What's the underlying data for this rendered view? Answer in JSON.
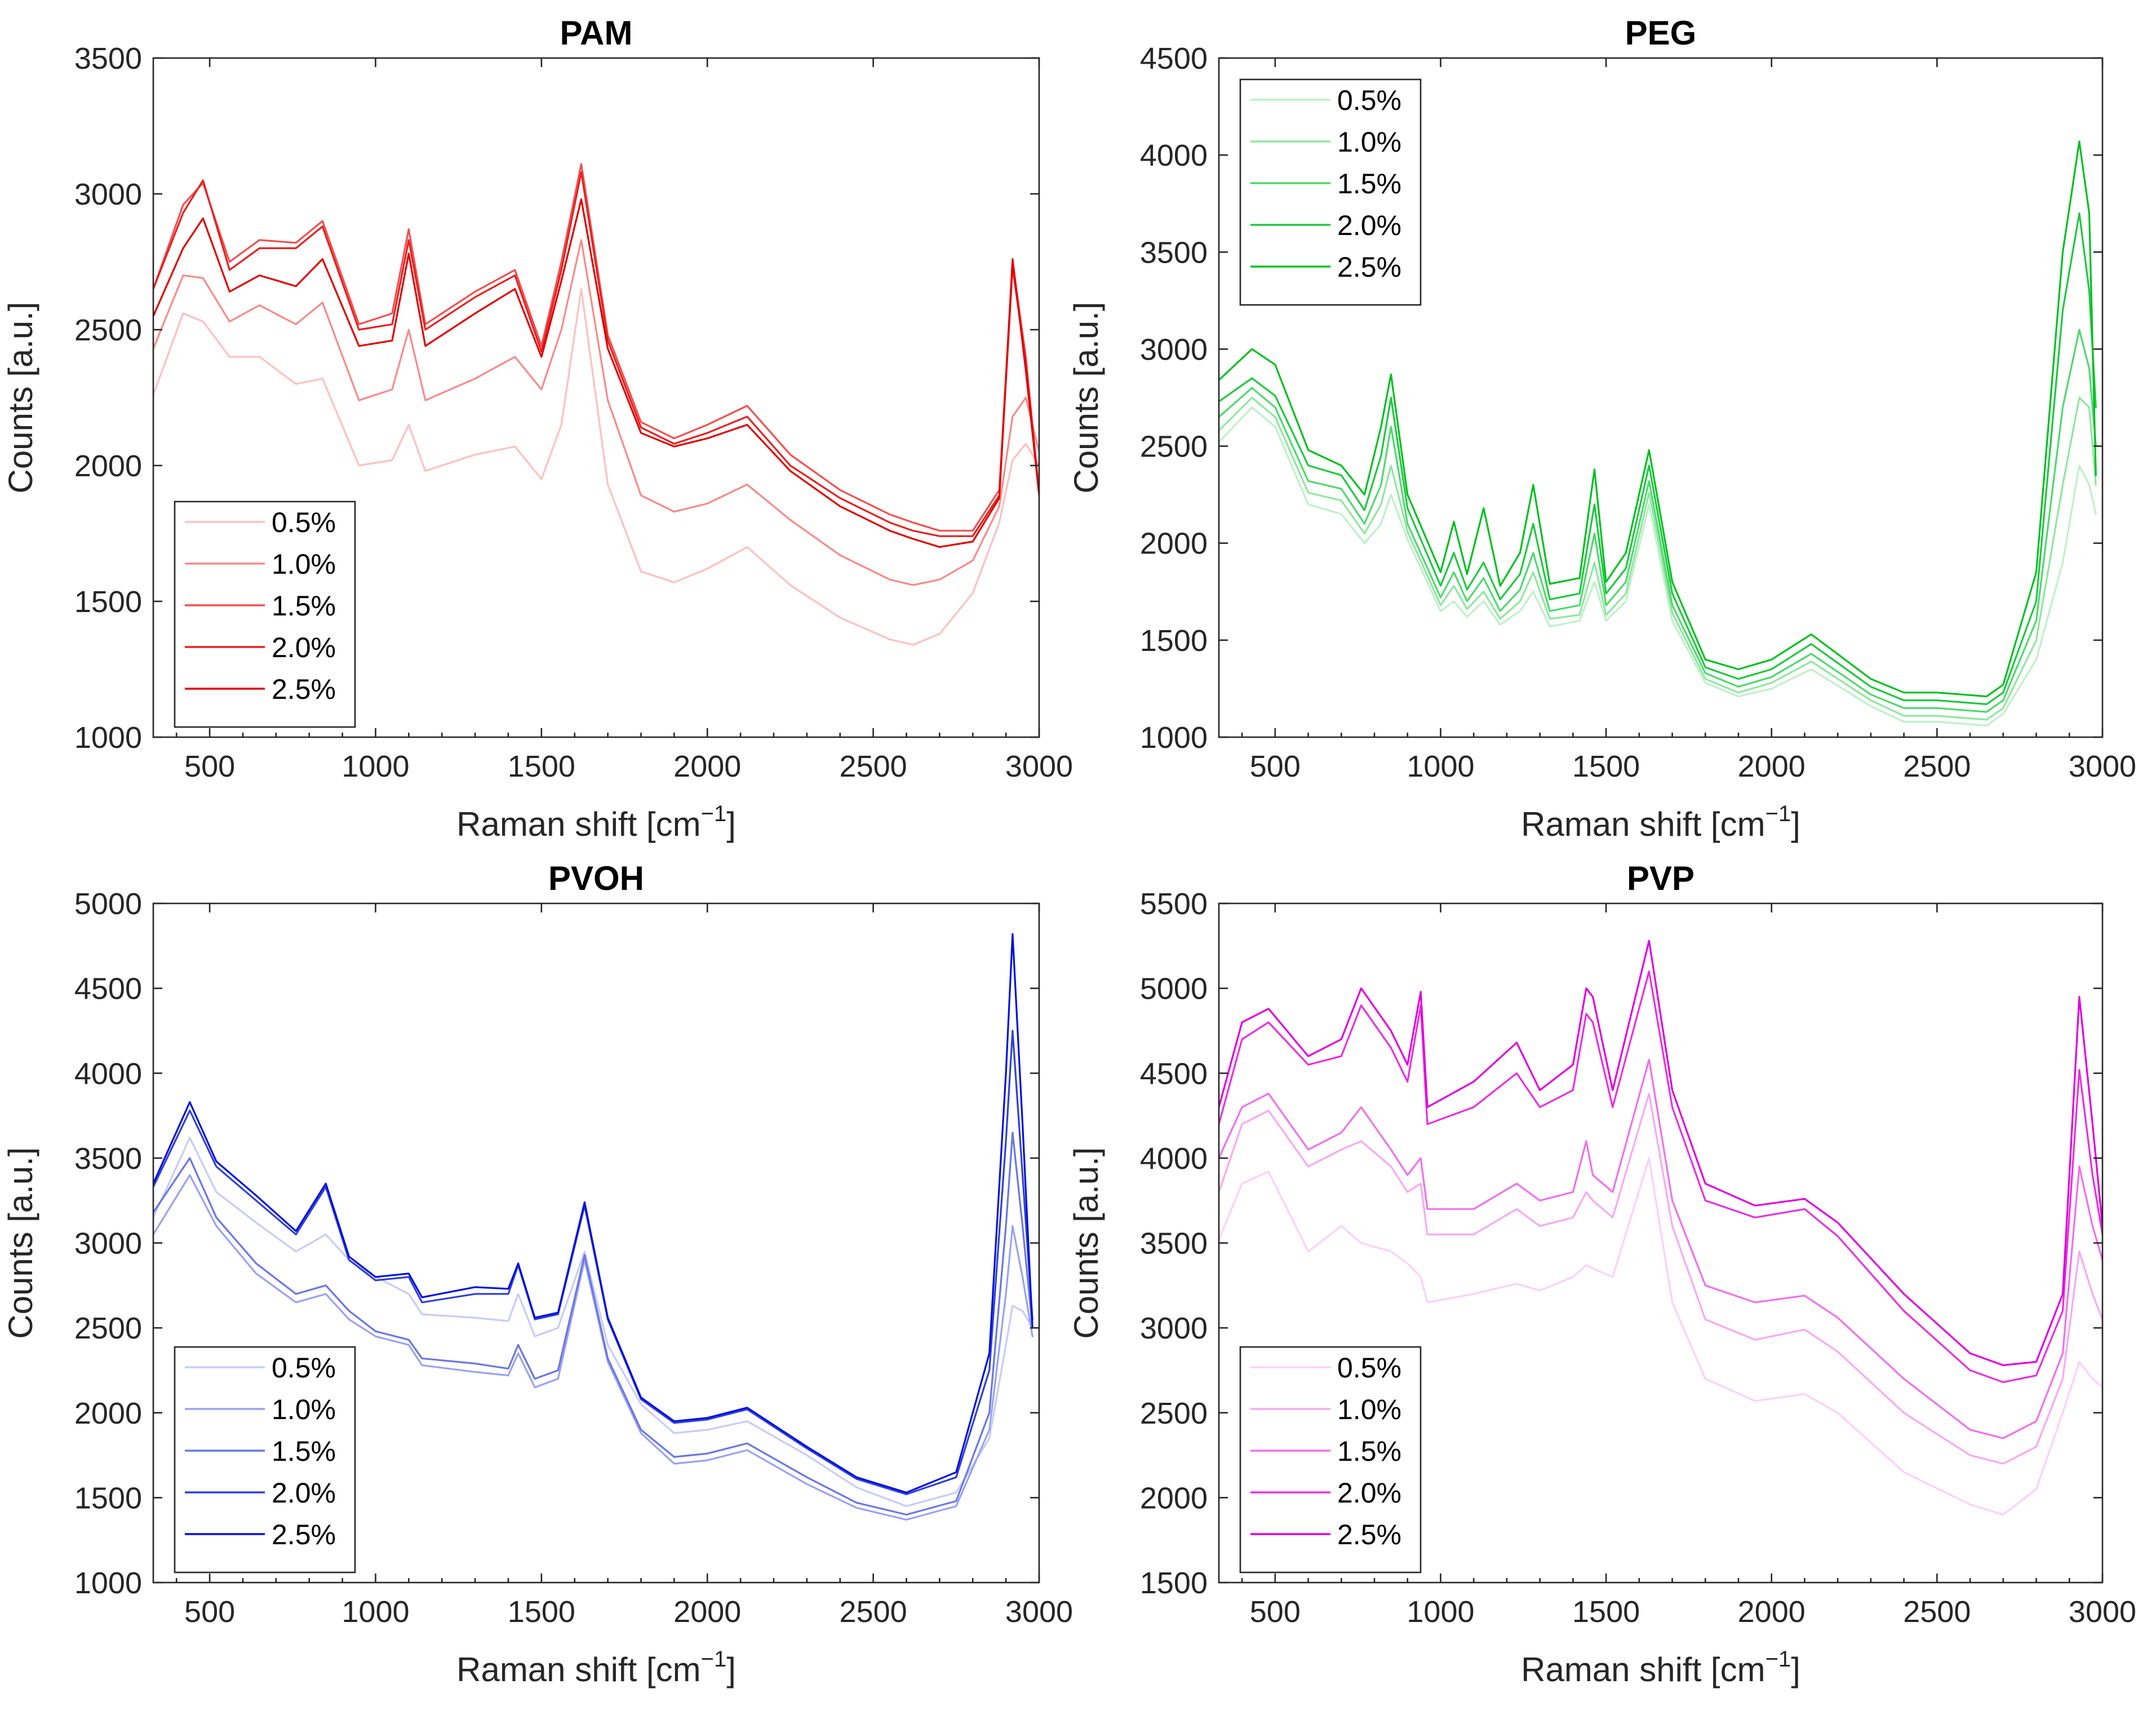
{
  "chart_data": [
    {
      "type": "line",
      "title": "PAM",
      "xlabel": "Raman shift [cm",
      "xlabel_exponent": "−1",
      "xlabel_close": "]",
      "ylabel": "Counts [a.u.]",
      "xlim": [
        330,
        3000
      ],
      "ylim": [
        1000,
        3500
      ],
      "xticks": [
        500,
        1000,
        1500,
        2000,
        2500,
        3000
      ],
      "xtick_labels": [
        "500",
        "1000",
        "1500",
        "2000",
        "2500",
        "3000"
      ],
      "yticks": [
        1000,
        1500,
        2000,
        2500,
        3000,
        3500
      ],
      "ytick_labels": [
        "1000",
        "1500",
        "2000",
        "2500",
        "3000",
        "3500"
      ],
      "legend_position": "bottom-left",
      "x": [
        330,
        420,
        480,
        560,
        650,
        760,
        840,
        950,
        1050,
        1100,
        1150,
        1300,
        1420,
        1500,
        1560,
        1620,
        1700,
        1800,
        1900,
        2000,
        2120,
        2250,
        2400,
        2550,
        2620,
        2700,
        2800,
        2880,
        2920,
        2960,
        3000
      ],
      "series": [
        {
          "name": "0.5%",
          "color": "#ffc0c0",
          "values": [
            2260,
            2560,
            2530,
            2400,
            2400,
            2300,
            2320,
            2000,
            2020,
            2150,
            1980,
            2040,
            2070,
            1950,
            2150,
            2650,
            1930,
            1610,
            1570,
            1620,
            1700,
            1560,
            1440,
            1360,
            1340,
            1380,
            1530,
            1790,
            2020,
            2080,
            2000
          ]
        },
        {
          "name": "1.0%",
          "color": "#f88a8a",
          "values": [
            2430,
            2700,
            2690,
            2530,
            2590,
            2520,
            2600,
            2240,
            2280,
            2500,
            2240,
            2320,
            2400,
            2280,
            2500,
            2830,
            2240,
            1890,
            1830,
            1860,
            1930,
            1800,
            1670,
            1580,
            1560,
            1580,
            1650,
            1850,
            2180,
            2250,
            2050
          ]
        },
        {
          "name": "1.5%",
          "color": "#f25050",
          "values": [
            2650,
            2960,
            3040,
            2750,
            2830,
            2820,
            2900,
            2520,
            2560,
            2870,
            2520,
            2640,
            2720,
            2440,
            2750,
            3110,
            2480,
            2160,
            2100,
            2150,
            2220,
            2040,
            1910,
            1820,
            1790,
            1760,
            1760,
            1910,
            2750,
            2400,
            1900
          ]
        },
        {
          "name": "2.0%",
          "color": "#e82020",
          "values": [
            2650,
            2930,
            3050,
            2720,
            2800,
            2800,
            2880,
            2500,
            2520,
            2830,
            2500,
            2620,
            2700,
            2420,
            2720,
            3080,
            2460,
            2140,
            2080,
            2120,
            2180,
            2000,
            1880,
            1790,
            1760,
            1740,
            1740,
            1890,
            2730,
            2380,
            1900
          ]
        },
        {
          "name": "2.5%",
          "color": "#e00000",
          "values": [
            2550,
            2800,
            2910,
            2640,
            2700,
            2660,
            2760,
            2440,
            2460,
            2780,
            2440,
            2560,
            2650,
            2400,
            2680,
            2980,
            2430,
            2120,
            2070,
            2100,
            2150,
            1980,
            1850,
            1760,
            1730,
            1700,
            1720,
            1880,
            2760,
            2350,
            1890
          ]
        }
      ]
    },
    {
      "type": "line",
      "title": "PEG",
      "xlabel": "Raman shift [cm",
      "xlabel_exponent": "−1",
      "xlabel_close": "]",
      "ylabel": "Counts [a.u.]",
      "xlim": [
        330,
        3000
      ],
      "ylim": [
        1000,
        4500
      ],
      "xticks": [
        500,
        1000,
        1500,
        2000,
        2500,
        3000
      ],
      "xtick_labels": [
        "500",
        "1000",
        "1500",
        "2000",
        "2500",
        "3000"
      ],
      "yticks": [
        1000,
        1500,
        2000,
        2500,
        3000,
        3500,
        4000,
        4500
      ],
      "ytick_labels": [
        "1000",
        "1500",
        "2000",
        "2500",
        "3000",
        "3500",
        "4000",
        "4500"
      ],
      "legend_position": "top-left",
      "x": [
        330,
        430,
        500,
        600,
        700,
        770,
        820,
        850,
        900,
        1000,
        1040,
        1080,
        1130,
        1180,
        1240,
        1280,
        1330,
        1420,
        1465,
        1500,
        1560,
        1630,
        1700,
        1800,
        1900,
        2000,
        2120,
        2300,
        2400,
        2500,
        2650,
        2700,
        2800,
        2880,
        2930,
        2960,
        2980
      ],
      "series": [
        {
          "name": "0.5%",
          "color": "#c0f0c8",
          "values": [
            2520,
            2700,
            2600,
            2200,
            2150,
            2000,
            2100,
            2250,
            2020,
            1650,
            1700,
            1620,
            1700,
            1580,
            1650,
            1750,
            1570,
            1600,
            1800,
            1600,
            1700,
            2200,
            1600,
            1280,
            1210,
            1250,
            1350,
            1160,
            1080,
            1080,
            1060,
            1120,
            1400,
            1900,
            2400,
            2300,
            2150
          ]
        },
        {
          "name": "1.0%",
          "color": "#90e6a0",
          "values": [
            2580,
            2750,
            2650,
            2260,
            2220,
            2050,
            2200,
            2400,
            2060,
            1680,
            1780,
            1660,
            1750,
            1610,
            1700,
            1850,
            1610,
            1630,
            1900,
            1630,
            1740,
            2260,
            1640,
            1300,
            1230,
            1280,
            1390,
            1190,
            1110,
            1110,
            1090,
            1150,
            1500,
            2300,
            2750,
            2700,
            2300
          ]
        },
        {
          "name": "1.5%",
          "color": "#50d870",
          "values": [
            2650,
            2800,
            2700,
            2320,
            2280,
            2100,
            2300,
            2600,
            2100,
            1720,
            1850,
            1700,
            1820,
            1650,
            1760,
            1950,
            1650,
            1680,
            2050,
            1680,
            1800,
            2320,
            1680,
            1330,
            1260,
            1310,
            1430,
            1220,
            1150,
            1150,
            1130,
            1190,
            1600,
            2700,
            3100,
            2900,
            2500
          ]
        },
        {
          "name": "2.0%",
          "color": "#20c840",
          "values": [
            2730,
            2850,
            2760,
            2400,
            2350,
            2170,
            2450,
            2750,
            2180,
            1780,
            1950,
            1760,
            1900,
            1710,
            1840,
            2100,
            1710,
            1740,
            2200,
            1740,
            1870,
            2400,
            1740,
            1360,
            1300,
            1350,
            1480,
            1260,
            1190,
            1190,
            1170,
            1230,
            1700,
            3200,
            3700,
            3300,
            2700
          ]
        },
        {
          "name": "2.5%",
          "color": "#00c020",
          "values": [
            2840,
            3000,
            2920,
            2480,
            2400,
            2250,
            2600,
            2870,
            2250,
            1850,
            2110,
            1840,
            2180,
            1780,
            1950,
            2300,
            1790,
            1820,
            2380,
            1800,
            1950,
            2480,
            1800,
            1400,
            1350,
            1400,
            1530,
            1300,
            1230,
            1230,
            1210,
            1270,
            1850,
            3500,
            4070,
            3700,
            2350
          ]
        }
      ]
    },
    {
      "type": "line",
      "title": "PVOH",
      "xlabel": "Raman shift [cm",
      "xlabel_exponent": "−1",
      "xlabel_close": "]",
      "ylabel": "Counts [a.u.]",
      "xlim": [
        330,
        3000
      ],
      "ylim": [
        1000,
        5000
      ],
      "xticks": [
        500,
        1000,
        1500,
        2000,
        2500,
        3000
      ],
      "xtick_labels": [
        "500",
        "1000",
        "1500",
        "2000",
        "2500",
        "3000"
      ],
      "yticks": [
        1000,
        1500,
        2000,
        2500,
        3000,
        3500,
        4000,
        4500,
        5000
      ],
      "ytick_labels": [
        "1000",
        "1500",
        "2000",
        "2500",
        "3000",
        "3500",
        "4000",
        "4500",
        "5000"
      ],
      "legend_position": "bottom-left",
      "x": [
        330,
        440,
        520,
        640,
        760,
        850,
        920,
        1000,
        1100,
        1140,
        1300,
        1400,
        1430,
        1480,
        1550,
        1630,
        1700,
        1800,
        1900,
        2000,
        2120,
        2300,
        2450,
        2600,
        2750,
        2850,
        2900,
        2920,
        2950,
        2980
      ],
      "series": [
        {
          "name": "0.5%",
          "color": "#c8ccf8",
          "values": [
            3150,
            3620,
            3300,
            3120,
            2950,
            3050,
            2900,
            2800,
            2700,
            2580,
            2560,
            2540,
            2700,
            2450,
            2500,
            2950,
            2400,
            2050,
            1880,
            1900,
            1950,
            1750,
            1560,
            1450,
            1530,
            1850,
            2400,
            2630,
            2600,
            2500
          ]
        },
        {
          "name": "1.0%",
          "color": "#9aa2f0",
          "values": [
            3050,
            3400,
            3100,
            2820,
            2650,
            2700,
            2550,
            2450,
            2400,
            2280,
            2240,
            2220,
            2350,
            2150,
            2200,
            2900,
            2300,
            1880,
            1700,
            1720,
            1780,
            1580,
            1440,
            1370,
            1450,
            1900,
            2700,
            3100,
            2800,
            2450
          ]
        },
        {
          "name": "1.5%",
          "color": "#6a76e6",
          "values": [
            3180,
            3500,
            3150,
            2880,
            2700,
            2750,
            2600,
            2480,
            2430,
            2320,
            2290,
            2260,
            2400,
            2200,
            2250,
            2930,
            2320,
            1900,
            1740,
            1760,
            1820,
            1620,
            1470,
            1400,
            1480,
            2000,
            3100,
            3650,
            3100,
            2500
          ]
        },
        {
          "name": "2.0%",
          "color": "#3040d8",
          "values": [
            3330,
            3780,
            3450,
            3250,
            3050,
            3330,
            2900,
            2780,
            2800,
            2650,
            2700,
            2700,
            2870,
            2550,
            2580,
            3220,
            2550,
            2080,
            1940,
            1960,
            2020,
            1790,
            1610,
            1520,
            1620,
            2250,
            3600,
            4250,
            3400,
            2550
          ]
        },
        {
          "name": "2.5%",
          "color": "#0010e0",
          "values": [
            3350,
            3830,
            3480,
            3280,
            3070,
            3350,
            2920,
            2800,
            2820,
            2680,
            2740,
            2730,
            2880,
            2560,
            2590,
            3240,
            2560,
            2090,
            1950,
            1970,
            2030,
            1800,
            1620,
            1530,
            1650,
            2350,
            4000,
            4820,
            3700,
            2500
          ]
        }
      ]
    },
    {
      "type": "line",
      "title": "PVP",
      "xlabel": "Raman shift [cm",
      "xlabel_exponent": "−1",
      "xlabel_close": "]",
      "ylabel": "Counts [a.u.]",
      "xlim": [
        330,
        3000
      ],
      "ylim": [
        1500,
        5500
      ],
      "xticks": [
        500,
        1000,
        1500,
        2000,
        2500,
        3000
      ],
      "xtick_labels": [
        "500",
        "1000",
        "1500",
        "2000",
        "2500",
        "3000"
      ],
      "yticks": [
        1500,
        2000,
        2500,
        3000,
        3500,
        4000,
        4500,
        5000,
        5500
      ],
      "ytick_labels": [
        "1500",
        "2000",
        "2500",
        "3000",
        "3500",
        "4000",
        "4500",
        "5000",
        "5500"
      ],
      "legend_position": "bottom-left",
      "x": [
        330,
        400,
        480,
        600,
        700,
        760,
        850,
        900,
        940,
        960,
        1100,
        1230,
        1300,
        1400,
        1440,
        1460,
        1520,
        1630,
        1700,
        1800,
        1950,
        2100,
        2200,
        2400,
        2600,
        2700,
        2800,
        2880,
        2930,
        2970,
        3000
      ],
      "series": [
        {
          "name": "0.5%",
          "color": "#fcd0fa",
          "values": [
            3520,
            3850,
            3920,
            3450,
            3600,
            3500,
            3450,
            3380,
            3300,
            3150,
            3200,
            3260,
            3220,
            3300,
            3370,
            3350,
            3300,
            4000,
            3150,
            2700,
            2570,
            2610,
            2500,
            2150,
            1960,
            1900,
            2050,
            2500,
            2800,
            2700,
            2650
          ]
        },
        {
          "name": "1.0%",
          "color": "#f8a8f4",
          "values": [
            3800,
            4200,
            4280,
            3950,
            4050,
            4100,
            3950,
            3800,
            3850,
            3550,
            3550,
            3700,
            3600,
            3650,
            3800,
            3750,
            3650,
            4380,
            3600,
            3050,
            2930,
            2990,
            2860,
            2500,
            2250,
            2200,
            2300,
            2700,
            3450,
            3200,
            3050
          ]
        },
        {
          "name": "1.5%",
          "color": "#f070ec",
          "values": [
            4000,
            4300,
            4380,
            4050,
            4150,
            4300,
            4050,
            3900,
            4000,
            3700,
            3700,
            3850,
            3750,
            3800,
            4100,
            3900,
            3800,
            4580,
            3750,
            3250,
            3150,
            3190,
            3060,
            2700,
            2400,
            2350,
            2450,
            2850,
            3950,
            3600,
            3400
          ]
        },
        {
          "name": "2.0%",
          "color": "#e830e0",
          "values": [
            4200,
            4700,
            4800,
            4550,
            4600,
            4900,
            4650,
            4450,
            4900,
            4200,
            4300,
            4500,
            4300,
            4400,
            4850,
            4800,
            4300,
            5100,
            4300,
            3750,
            3650,
            3700,
            3540,
            3100,
            2750,
            2680,
            2720,
            3100,
            4520,
            3900,
            3550
          ]
        },
        {
          "name": "2.5%",
          "color": "#e000e0",
          "values": [
            4300,
            4800,
            4880,
            4600,
            4700,
            5000,
            4750,
            4550,
            4980,
            4300,
            4450,
            4680,
            4400,
            4550,
            5000,
            4950,
            4400,
            5280,
            4400,
            3850,
            3720,
            3760,
            3620,
            3200,
            2850,
            2780,
            2800,
            3200,
            4950,
            4200,
            3600
          ]
        }
      ]
    }
  ]
}
